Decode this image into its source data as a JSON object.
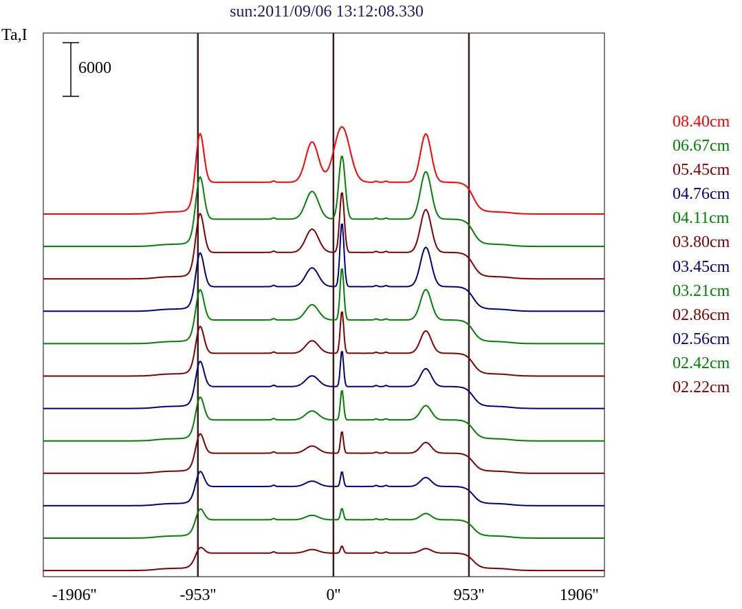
{
  "title": "sun:2011/09/06 13:12:08.330",
  "ylabel": "Ta,I",
  "scale_bar_label": "6000",
  "chart_data": {
    "type": "line",
    "title": "sun:2011/09/06 13:12:08.330",
    "ylabel": "Ta,I",
    "xlabel": "",
    "xlim": [
      -2040,
      1906
    ],
    "x_ticks": [
      "-1906''",
      "-953''",
      "0''",
      "953''",
      "1906''"
    ],
    "x_tick_values": [
      -1906,
      -953,
      0,
      953,
      1906
    ],
    "vertical_lines": [
      -953,
      0,
      953
    ],
    "scale_bar": 6000,
    "grid": false,
    "legend_position": "right",
    "series": [
      {
        "name": "08.40cm",
        "color": "#ff0000",
        "baseline": 0,
        "amp": 1.0,
        "features": {
          "limb": 6000,
          "disk": 3300,
          "p1": 4500,
          "p2": 6200,
          "p3": 5400,
          "p2w": 55
        }
      },
      {
        "name": "06.67cm",
        "color": "#008000",
        "baseline": 0,
        "amp": 1.0,
        "features": {
          "limb": 5200,
          "disk": 2800,
          "p1": 3100,
          "p2": 7100,
          "p3": 5300,
          "p2w": 22
        }
      },
      {
        "name": "05.45cm",
        "color": "#800000",
        "baseline": 0,
        "amp": 1.0,
        "features": {
          "limb": 4800,
          "disk": 2700,
          "p1": 2600,
          "p2": 6800,
          "p3": 4800,
          "p2w": 16
        }
      },
      {
        "name": "04.76cm",
        "color": "#000080",
        "baseline": 0,
        "amp": 1.0,
        "features": {
          "limb": 4200,
          "disk": 2500,
          "p1": 2100,
          "p2": 7200,
          "p3": 4400,
          "p2w": 14
        }
      },
      {
        "name": "04.11cm",
        "color": "#008000",
        "baseline": 0,
        "amp": 1.0,
        "features": {
          "limb": 3800,
          "disk": 2400,
          "p1": 1700,
          "p2": 5900,
          "p3": 3400,
          "p2w": 13
        }
      },
      {
        "name": "03.80cm",
        "color": "#800000",
        "baseline": 0,
        "amp": 1.0,
        "features": {
          "limb": 3400,
          "disk": 2300,
          "p1": 1400,
          "p2": 4800,
          "p3": 2500,
          "p2w": 12
        }
      },
      {
        "name": "03.45cm",
        "color": "#000080",
        "baseline": 0,
        "amp": 1.0,
        "features": {
          "limb": 3200,
          "disk": 2200,
          "p1": 1200,
          "p2": 4100,
          "p3": 2000,
          "p2w": 11
        }
      },
      {
        "name": "03.21cm",
        "color": "#008000",
        "baseline": 0,
        "amp": 1.0,
        "features": {
          "limb": 2900,
          "disk": 2100,
          "p1": 1000,
          "p2": 3400,
          "p3": 1600,
          "p2w": 11
        }
      },
      {
        "name": "02.86cm",
        "color": "#800000",
        "baseline": 0,
        "amp": 1.0,
        "features": {
          "limb": 2500,
          "disk": 2000,
          "p1": 800,
          "p2": 2500,
          "p3": 1200,
          "p2w": 10
        }
      },
      {
        "name": "02.56cm",
        "color": "#000080",
        "baseline": 0,
        "amp": 1.0,
        "features": {
          "limb": 2000,
          "disk": 1900,
          "p1": 600,
          "p2": 1700,
          "p3": 1000,
          "p2w": 10
        }
      },
      {
        "name": "02.42cm",
        "color": "#008000",
        "baseline": 0,
        "amp": 1.0,
        "features": {
          "limb": 1500,
          "disk": 1800,
          "p1": 500,
          "p2": 1300,
          "p3": 700,
          "p2w": 10
        }
      },
      {
        "name": "02.22cm",
        "color": "#800000",
        "baseline": 0,
        "amp": 1.0,
        "features": {
          "limb": 900,
          "disk": 1700,
          "p1": 400,
          "p2": 800,
          "p3": 500,
          "p2w": 10
        }
      }
    ]
  }
}
